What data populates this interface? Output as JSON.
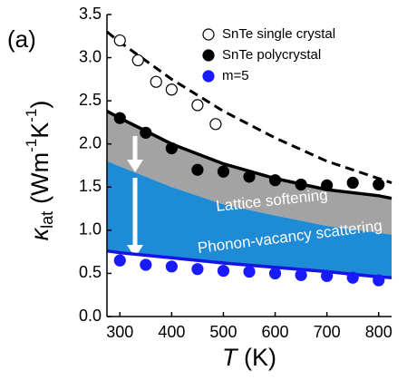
{
  "chart_data": {
    "type": "line",
    "panel_label": "(a)",
    "xlabel": {
      "symbol": "T",
      "unit": "(K)"
    },
    "ylabel": {
      "symbol": "κ",
      "sub": "lat",
      "parts": [
        "(Wm",
        "-1",
        "K",
        "-1",
        ")"
      ]
    },
    "xlim": [
      275,
      825
    ],
    "ylim": [
      0,
      3.5
    ],
    "xticks": [
      300,
      400,
      500,
      600,
      700,
      800
    ],
    "yticks": [
      {
        "value": 0,
        "label": "0.0"
      },
      0.5,
      {
        "value": 1,
        "label": "1.0"
      },
      1.5,
      {
        "value": 2,
        "label": "2.0"
      },
      2.5,
      {
        "value": 3,
        "label": "3.0"
      },
      3.5
    ],
    "bands": [
      {
        "color": "#a3a3a3",
        "x": [
          275,
          300,
          400,
          500,
          600,
          700,
          800,
          825
        ],
        "upper": [
          2.38,
          2.3,
          2.0,
          1.77,
          1.6,
          1.47,
          1.4,
          1.37
        ],
        "lower": [
          1.8,
          1.74,
          1.5,
          1.3,
          1.17,
          1.05,
          0.97,
          0.95
        ]
      },
      {
        "color": "#1e8bd6",
        "x": [
          275,
          300,
          400,
          500,
          600,
          700,
          800,
          825
        ],
        "upper": [
          1.8,
          1.74,
          1.5,
          1.3,
          1.17,
          1.05,
          0.97,
          0.95
        ],
        "lower": [
          0.76,
          0.74,
          0.68,
          0.62,
          0.57,
          0.52,
          0.46,
          0.45
        ]
      }
    ],
    "series": [
      {
        "kind": "line",
        "color": "#000000",
        "dash": true,
        "x": [
          275,
          300,
          400,
          500,
          600,
          700,
          800,
          825
        ],
        "values": [
          3.3,
          3.18,
          2.75,
          2.38,
          2.07,
          1.8,
          1.6,
          1.55
        ]
      },
      {
        "kind": "line",
        "color": "#000000",
        "dash": false,
        "x": [
          275,
          300,
          400,
          500,
          600,
          700,
          800,
          825
        ],
        "values": [
          2.38,
          2.3,
          2.0,
          1.77,
          1.6,
          1.47,
          1.4,
          1.37
        ]
      },
      {
        "kind": "line",
        "color": "#1414e6",
        "dash": false,
        "x": [
          275,
          300,
          400,
          500,
          600,
          700,
          800,
          825
        ],
        "values": [
          0.76,
          0.74,
          0.68,
          0.62,
          0.57,
          0.52,
          0.46,
          0.45
        ]
      },
      {
        "kind": "scatter",
        "name": "SnTe single crystal",
        "marker": "open",
        "color": "#000000",
        "x": [
          300,
          335,
          370,
          400,
          450,
          485
        ],
        "values": [
          3.2,
          2.97,
          2.72,
          2.63,
          2.45,
          2.23
        ]
      },
      {
        "kind": "scatter",
        "name": "SnTe polycrystal",
        "marker": "filled",
        "color": "#000000",
        "x": [
          300,
          350,
          400,
          450,
          500,
          550,
          600,
          650,
          700,
          750,
          800
        ],
        "values": [
          2.3,
          2.13,
          1.95,
          1.7,
          1.68,
          1.62,
          1.58,
          1.53,
          1.52,
          1.55,
          1.53
        ]
      },
      {
        "kind": "scatter",
        "name": "m=5",
        "marker": "filled",
        "color": "#1a1aff",
        "x": [
          300,
          350,
          400,
          450,
          500,
          550,
          600,
          650,
          700,
          750,
          800
        ],
        "values": [
          0.65,
          0.6,
          0.58,
          0.55,
          0.53,
          0.52,
          0.5,
          0.48,
          0.47,
          0.45,
          0.42
        ]
      }
    ],
    "annotations": [
      "Lattice softening",
      "Phonon-vacancy scattering"
    ]
  }
}
